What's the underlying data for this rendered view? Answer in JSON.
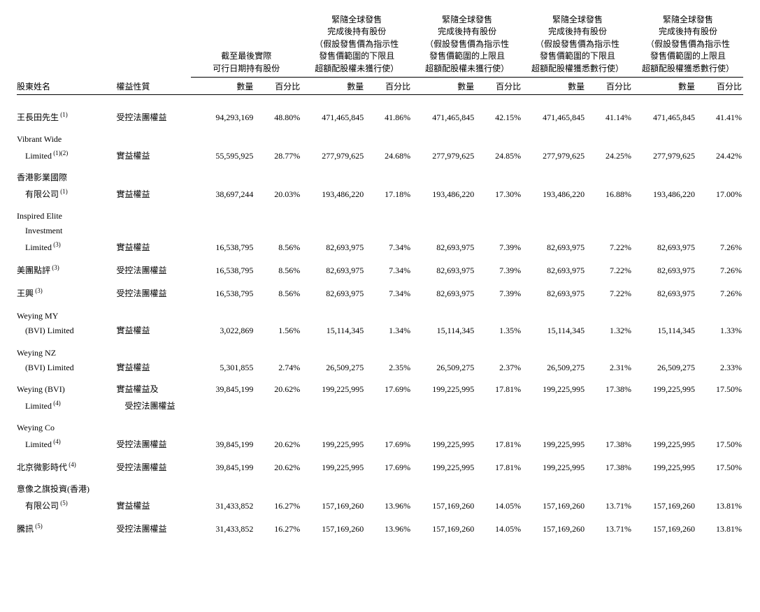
{
  "headers": {
    "name_col": "股東姓名",
    "type_col": "權益性質",
    "groups": [
      {
        "lines": [
          "截至最後實際",
          "可行日期持有股份"
        ]
      },
      {
        "lines": [
          "緊隨全球發售",
          "完成後持有股份",
          "（假設發售價為指示性",
          "發售價範圍的下限且",
          "超額配股權未獲行使）"
        ]
      },
      {
        "lines": [
          "緊隨全球發售",
          "完成後持有股份",
          "（假設發售價為指示性",
          "發售價範圍的上限且",
          "超額配股權未獲行使）"
        ]
      },
      {
        "lines": [
          "緊隨全球發售",
          "完成後持有股份",
          "（假設發售價為指示性",
          "發售價範圍的下限且",
          "超額配股權獲悉數行使）"
        ]
      },
      {
        "lines": [
          "緊隨全球發售",
          "完成後持有股份",
          "（假設發售價為指示性",
          "發售價範圍的上限且",
          "超額配股權獲悉數行使）"
        ]
      }
    ],
    "sub_qty": "數量",
    "sub_pct": "百分比"
  },
  "rows": [
    {
      "name_lines": [
        "王長田先生"
      ],
      "sup": "(1)",
      "type_lines": [
        "受控法團權益"
      ],
      "vals": [
        [
          "94,293,169",
          "48.80%"
        ],
        [
          "471,465,845",
          "41.86%"
        ],
        [
          "471,465,845",
          "42.15%"
        ],
        [
          "471,465,845",
          "41.14%"
        ],
        [
          "471,465,845",
          "41.41%"
        ]
      ]
    },
    {
      "name_lines": [
        "Vibrant Wide",
        "Limited"
      ],
      "sup": "(1)(2)",
      "type_lines": [
        "實益權益"
      ],
      "vals": [
        [
          "55,595,925",
          "28.77%"
        ],
        [
          "277,979,625",
          "24.68%"
        ],
        [
          "277,979,625",
          "24.85%"
        ],
        [
          "277,979,625",
          "24.25%"
        ],
        [
          "277,979,625",
          "24.42%"
        ]
      ]
    },
    {
      "name_lines": [
        "香港影業國際",
        "有限公司"
      ],
      "sup": "(1)",
      "type_lines": [
        "實益權益"
      ],
      "vals": [
        [
          "38,697,244",
          "20.03%"
        ],
        [
          "193,486,220",
          "17.18%"
        ],
        [
          "193,486,220",
          "17.30%"
        ],
        [
          "193,486,220",
          "16.88%"
        ],
        [
          "193,486,220",
          "17.00%"
        ]
      ]
    },
    {
      "name_lines": [
        "Inspired Elite",
        "Investment",
        "Limited"
      ],
      "sup": "(3)",
      "type_lines": [
        "實益權益"
      ],
      "vals": [
        [
          "16,538,795",
          "8.56%"
        ],
        [
          "82,693,975",
          "7.34%"
        ],
        [
          "82,693,975",
          "7.39%"
        ],
        [
          "82,693,975",
          "7.22%"
        ],
        [
          "82,693,975",
          "7.26%"
        ]
      ]
    },
    {
      "name_lines": [
        "美團點評"
      ],
      "sup": "(3)",
      "type_lines": [
        "受控法團權益"
      ],
      "vals": [
        [
          "16,538,795",
          "8.56%"
        ],
        [
          "82,693,975",
          "7.34%"
        ],
        [
          "82,693,975",
          "7.39%"
        ],
        [
          "82,693,975",
          "7.22%"
        ],
        [
          "82,693,975",
          "7.26%"
        ]
      ]
    },
    {
      "name_lines": [
        "王興"
      ],
      "sup": "(3)",
      "type_lines": [
        "受控法團權益"
      ],
      "vals": [
        [
          "16,538,795",
          "8.56%"
        ],
        [
          "82,693,975",
          "7.34%"
        ],
        [
          "82,693,975",
          "7.39%"
        ],
        [
          "82,693,975",
          "7.22%"
        ],
        [
          "82,693,975",
          "7.26%"
        ]
      ]
    },
    {
      "name_lines": [
        "Weying MY",
        "(BVI) Limited"
      ],
      "sup": "",
      "type_lines": [
        "實益權益"
      ],
      "vals": [
        [
          "3,022,869",
          "1.56%"
        ],
        [
          "15,114,345",
          "1.34%"
        ],
        [
          "15,114,345",
          "1.35%"
        ],
        [
          "15,114,345",
          "1.32%"
        ],
        [
          "15,114,345",
          "1.33%"
        ]
      ]
    },
    {
      "name_lines": [
        "Weying NZ",
        "(BVI) Limited"
      ],
      "sup": "",
      "type_lines": [
        "實益權益"
      ],
      "vals": [
        [
          "5,301,855",
          "2.74%"
        ],
        [
          "26,509,275",
          "2.35%"
        ],
        [
          "26,509,275",
          "2.37%"
        ],
        [
          "26,509,275",
          "2.31%"
        ],
        [
          "26,509,275",
          "2.33%"
        ]
      ]
    },
    {
      "name_lines": [
        "Weying (BVI)",
        "Limited"
      ],
      "sup": "(4)",
      "type_lines": [
        "實益權益及",
        "受控法團權益"
      ],
      "vals": [
        [
          "39,845,199",
          "20.62%"
        ],
        [
          "199,225,995",
          "17.69%"
        ],
        [
          "199,225,995",
          "17.81%"
        ],
        [
          "199,225,995",
          "17.38%"
        ],
        [
          "199,225,995",
          "17.50%"
        ]
      ]
    },
    {
      "name_lines": [
        "Weying Co",
        "Limited"
      ],
      "sup": "(4)",
      "type_lines": [
        "受控法團權益"
      ],
      "vals": [
        [
          "39,845,199",
          "20.62%"
        ],
        [
          "199,225,995",
          "17.69%"
        ],
        [
          "199,225,995",
          "17.81%"
        ],
        [
          "199,225,995",
          "17.38%"
        ],
        [
          "199,225,995",
          "17.50%"
        ]
      ]
    },
    {
      "name_lines": [
        "北京微影時代"
      ],
      "sup": "(4)",
      "type_lines": [
        "受控法團權益"
      ],
      "vals": [
        [
          "39,845,199",
          "20.62%"
        ],
        [
          "199,225,995",
          "17.69%"
        ],
        [
          "199,225,995",
          "17.81%"
        ],
        [
          "199,225,995",
          "17.38%"
        ],
        [
          "199,225,995",
          "17.50%"
        ]
      ]
    },
    {
      "name_lines": [
        "意像之旗投資(香港)",
        "有限公司"
      ],
      "sup": "(5)",
      "type_lines": [
        "實益權益"
      ],
      "vals": [
        [
          "31,433,852",
          "16.27%"
        ],
        [
          "157,169,260",
          "13.96%"
        ],
        [
          "157,169,260",
          "14.05%"
        ],
        [
          "157,169,260",
          "13.71%"
        ],
        [
          "157,169,260",
          "13.81%"
        ]
      ]
    },
    {
      "name_lines": [
        "騰訊"
      ],
      "sup": "(5)",
      "type_lines": [
        "受控法團權益"
      ],
      "vals": [
        [
          "31,433,852",
          "16.27%"
        ],
        [
          "157,169,260",
          "13.96%"
        ],
        [
          "157,169,260",
          "14.05%"
        ],
        [
          "157,169,260",
          "13.71%"
        ],
        [
          "157,169,260",
          "13.81%"
        ]
      ]
    }
  ]
}
